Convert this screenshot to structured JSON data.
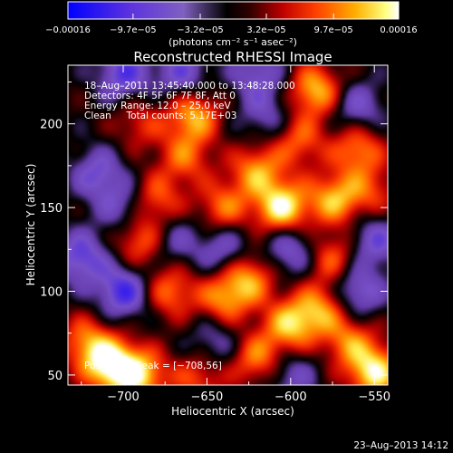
{
  "chart_data": {
    "type": "heatmap",
    "title": "Reconstructed RHESSI Image",
    "xlabel": "Heliocentric X (arcsec)",
    "ylabel": "Heliocentric Y (arcsec)",
    "xlim": [
      -733,
      -542
    ],
    "ylim": [
      44,
      235
    ],
    "x_ticks": [
      -700,
      -650,
      -600,
      -550
    ],
    "y_ticks": [
      50,
      100,
      150,
      200
    ],
    "x_tick_labels": [
      "−700",
      "−650",
      "−600",
      "−550"
    ],
    "y_tick_labels": [
      "50",
      "100",
      "150",
      "200"
    ],
    "colorbar": {
      "min": -0.00016,
      "max": 0.00016,
      "ticks": [
        -0.00016,
        -9.7e-05,
        -3.2e-05,
        3.2e-05,
        9.7e-05,
        0.00016
      ],
      "tick_labels": [
        "−0.00016",
        "−9.7e−05",
        "−3.2e−05",
        "3.2e−05",
        "9.7e−05",
        "0.00016"
      ],
      "unit_label": "(photons cm⁻² s⁻¹ asec⁻²)",
      "colors": [
        "#0000ff",
        "#6a3dd8",
        "#8060c0",
        "#000000",
        "#b00000",
        "#ff4000",
        "#ffa000",
        "#ffff60",
        "#ffffff"
      ]
    },
    "annotations": {
      "time_range": "18–Aug–2011 13:45:40.000 to 13:48:28.000",
      "detectors": "Detectors: 4F 5F 6F 7F 8F, Att 0",
      "energy": "Energy Range: 12.0 – 25.0 keV",
      "clean": "Clean     Total counts: 5.17E+03",
      "peak": "Position of Peak = [−708,56]"
    },
    "peak_position": [
      -708,
      56
    ],
    "sources": [
      {
        "x": -708,
        "y": 56,
        "v": 1.0
      },
      {
        "x": -690,
        "y": 50,
        "v": 0.8
      },
      {
        "x": -722,
        "y": 70,
        "v": 0.55
      },
      {
        "x": -655,
        "y": 48,
        "v": 0.45
      },
      {
        "x": -620,
        "y": 60,
        "v": 0.6
      },
      {
        "x": -600,
        "y": 80,
        "v": 0.75
      },
      {
        "x": -582,
        "y": 90,
        "v": 0.6
      },
      {
        "x": -550,
        "y": 52,
        "v": 0.9
      },
      {
        "x": -565,
        "y": 70,
        "v": 0.55
      },
      {
        "x": -575,
        "y": 120,
        "v": 0.5
      },
      {
        "x": -625,
        "y": 108,
        "v": 0.65
      },
      {
        "x": -640,
        "y": 95,
        "v": 0.6
      },
      {
        "x": -672,
        "y": 100,
        "v": 0.55
      },
      {
        "x": -690,
        "y": 130,
        "v": 0.55
      },
      {
        "x": -680,
        "y": 155,
        "v": 0.5
      },
      {
        "x": -658,
        "y": 205,
        "v": 0.7
      },
      {
        "x": -663,
        "y": 180,
        "v": 0.5
      },
      {
        "x": -640,
        "y": 150,
        "v": 0.55
      },
      {
        "x": -620,
        "y": 172,
        "v": 0.65
      },
      {
        "x": -605,
        "y": 150,
        "v": 0.95
      },
      {
        "x": -595,
        "y": 190,
        "v": 0.5
      },
      {
        "x": -585,
        "y": 220,
        "v": 0.75
      },
      {
        "x": -574,
        "y": 155,
        "v": 0.7
      },
      {
        "x": -560,
        "y": 185,
        "v": 0.6
      },
      {
        "x": -552,
        "y": 160,
        "v": 0.4
      },
      {
        "x": -690,
        "y": 200,
        "v": 0.35
      },
      {
        "x": -700,
        "y": 100,
        "v": -0.7
      },
      {
        "x": -715,
        "y": 170,
        "v": -0.5
      },
      {
        "x": -700,
        "y": 230,
        "v": -0.6
      },
      {
        "x": -725,
        "y": 120,
        "v": -0.6
      },
      {
        "x": -665,
        "y": 230,
        "v": -0.5
      },
      {
        "x": -640,
        "y": 125,
        "v": -0.45
      },
      {
        "x": -600,
        "y": 125,
        "v": -0.5
      },
      {
        "x": -560,
        "y": 100,
        "v": -0.55
      },
      {
        "x": -550,
        "y": 130,
        "v": -0.5
      },
      {
        "x": -560,
        "y": 210,
        "v": -0.45
      },
      {
        "x": -620,
        "y": 230,
        "v": -0.45
      },
      {
        "x": -645,
        "y": 70,
        "v": -0.35
      },
      {
        "x": -600,
        "y": 50,
        "v": -0.4
      },
      {
        "x": -670,
        "y": 130,
        "v": -0.35
      },
      {
        "x": -700,
        "y": 150,
        "v": -0.4
      },
      {
        "x": -615,
        "y": 205,
        "v": -0.35
      }
    ]
  },
  "footer": {
    "timestamp": "23–Aug–2013 14:12"
  }
}
